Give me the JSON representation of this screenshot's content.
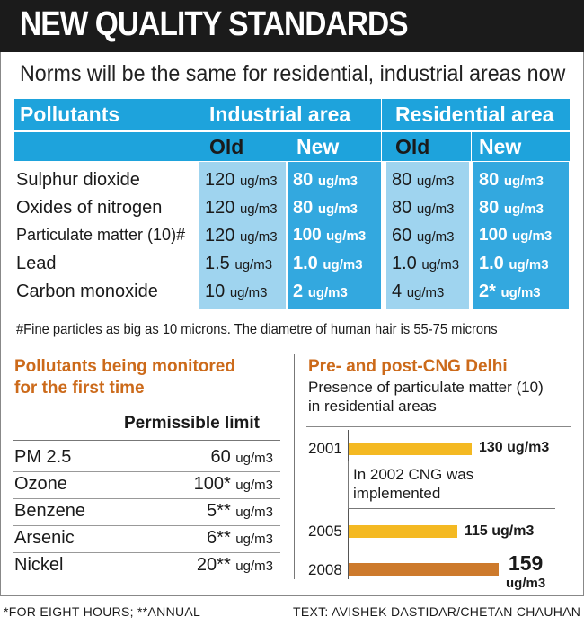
{
  "header": {
    "title": "NEW QUALITY STANDARDS"
  },
  "subtitle": "Norms will be the same for residential, industrial areas now",
  "table": {
    "col_pollutants": "Pollutants",
    "group_industrial": "Industrial area",
    "group_residential": "Residential area",
    "old_label": "Old",
    "new_label": "New",
    "unit": "ug/m3",
    "rows": [
      {
        "name": "Sulphur dioxide",
        "ind_old": "120",
        "ind_new": "80",
        "res_old": "80",
        "res_new": "80"
      },
      {
        "name": "Oxides of nitrogen",
        "ind_old": "120",
        "ind_new": "80",
        "res_old": "80",
        "res_new": "80"
      },
      {
        "name": "Particulate matter (10)#",
        "ind_old": "120",
        "ind_new": "100",
        "res_old": "60",
        "res_new": "100"
      },
      {
        "name": "Lead",
        "ind_old": "1.5",
        "ind_new": "1.0",
        "res_old": "1.0",
        "res_new": "1.0"
      },
      {
        "name": "Carbon monoxide",
        "ind_old": "10",
        "ind_new": "2",
        "res_old": "4",
        "res_new": "2*"
      }
    ]
  },
  "footnote": "#Fine particles as big as 10 microns. The diametre of human hair is 55-75 microns",
  "monitored": {
    "title_line1": "Pollutants being monitored",
    "title_line2": "for the first time",
    "limit_header": "Permissible limit",
    "unit": "ug/m3",
    "items": [
      {
        "name": "PM 2.5",
        "value": "60"
      },
      {
        "name": "Ozone",
        "value": "100*"
      },
      {
        "name": "Benzene",
        "value": "5**"
      },
      {
        "name": "Arsenic",
        "value": "6**"
      },
      {
        "name": "Nickel",
        "value": "20**"
      }
    ]
  },
  "cng": {
    "title": "Pre- and post-CNG Delhi",
    "subtitle_line1": "Presence of particulate matter (10)",
    "subtitle_line2": "in residential areas",
    "note": "In 2002 CNG was implemented",
    "bars": [
      {
        "year": "2001",
        "value": 130,
        "label": "130 ug/m3",
        "color": "#f4b922"
      },
      {
        "year": "2005",
        "value": 115,
        "label": "115 ug/m3",
        "color": "#f4b922"
      },
      {
        "year": "2008",
        "value": 159,
        "label_value": "159",
        "label_unit": "ug/m3",
        "color": "#cd7a2c"
      }
    ]
  },
  "bottom": {
    "legend": "*FOR EIGHT HOURS; **ANNUAL",
    "credit": "TEXT: AVISHEK DASTIDAR/CHETAN CHAUHAN"
  }
}
